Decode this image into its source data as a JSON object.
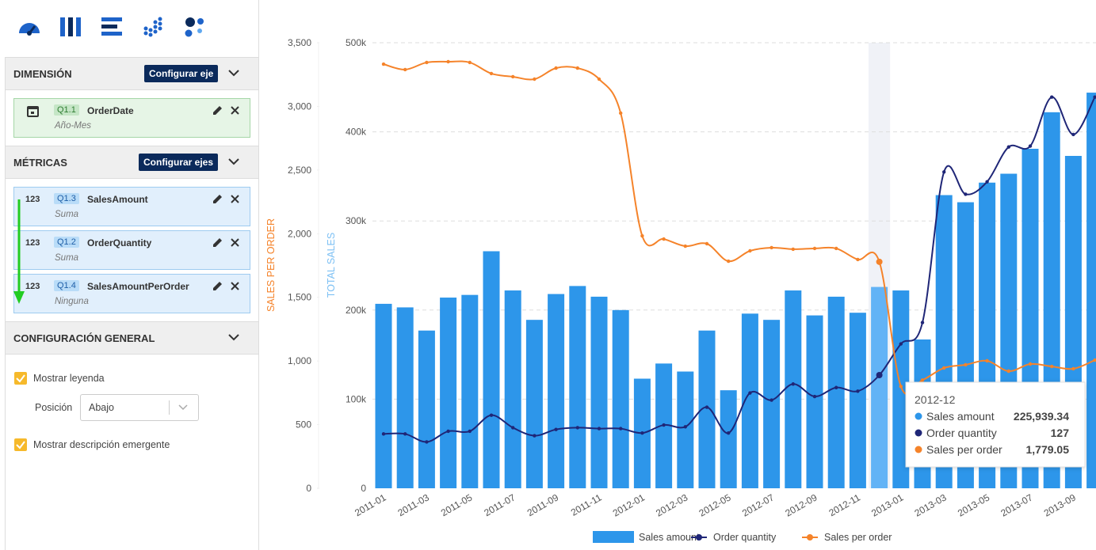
{
  "sidebar": {
    "dimension": {
      "title": "DIMENSIÓN",
      "button": "Configurar eje",
      "field": {
        "id": "Q1.1",
        "name": "OrderDate",
        "sub": "Año-Mes"
      }
    },
    "metrics": {
      "title": "MÉTRICAS",
      "button": "Configurar ejes",
      "fields": [
        {
          "type": "123",
          "id": "Q1.3",
          "name": "SalesAmount",
          "sub": "Suma"
        },
        {
          "type": "123",
          "id": "Q1.2",
          "name": "OrderQuantity",
          "sub": "Suma"
        },
        {
          "type": "123",
          "id": "Q1.4",
          "name": "SalesAmountPerOrder",
          "sub": "Ninguna"
        }
      ]
    },
    "general": {
      "title": "CONFIGURACIÓN GENERAL",
      "legend": "Mostrar leyenda",
      "position_label": "Posición",
      "position": "Abajo",
      "tooltip": "Mostrar descripción emergente"
    }
  },
  "chart_data": {
    "type": "bar",
    "categories": [
      "2011-01",
      null,
      "2011-03",
      null,
      "2011-05",
      null,
      "2011-07",
      null,
      "2011-09",
      null,
      "2011-11",
      null,
      "2012-01",
      null,
      "2012-03",
      null,
      "2012-05",
      null,
      "2012-07",
      null,
      "2012-09",
      null,
      "2012-11",
      null,
      "2013-01",
      null,
      "2013-03",
      null,
      "2013-05",
      null,
      "2013-07",
      null,
      "2013-09",
      null
    ],
    "series": [
      {
        "name": "Sales amount",
        "type": "bar",
        "color": "#2d96ea",
        "values": [
          207000,
          203000,
          177000,
          214000,
          217000,
          266000,
          222000,
          189000,
          218000,
          227000,
          215000,
          200000,
          123000,
          140000,
          131000,
          177000,
          110000,
          196000,
          189000,
          222000,
          194000,
          215000,
          197000,
          225939.34,
          222000,
          167000,
          329000,
          321000,
          343000,
          353000,
          381000,
          422000,
          373000,
          444000
        ]
      },
      {
        "name": "Order quantity",
        "type": "line",
        "axis": "y3",
        "color": "#1f2677",
        "values": [
          61,
          61,
          52,
          64,
          64,
          82,
          68,
          59,
          66,
          68,
          67,
          67,
          62,
          71,
          69,
          91,
          62,
          107,
          99,
          117,
          103,
          113,
          109,
          127,
          162,
          186,
          355,
          330,
          344,
          383,
          384,
          439,
          397,
          439
        ]
      },
      {
        "name": "Sales per order",
        "type": "line",
        "axis": "y2",
        "color": "#f5832a",
        "values": [
          3332,
          3289,
          3345,
          3351,
          3345,
          3258,
          3233,
          3214,
          3301,
          3301,
          3214,
          2947,
          1983,
          1958,
          1902,
          1921,
          1784,
          1865,
          1890,
          1878,
          1884,
          1884,
          1797,
          1779.05,
          800,
          850,
          945,
          970,
          1001,
          920,
          976,
          957,
          939,
          1007
        ]
      }
    ],
    "ylabel": "TOTAL SALES",
    "ylim": [
      0,
      500000
    ],
    "yticks": [
      0,
      {
        "value": 100000,
        "label": "100k"
      },
      {
        "value": 200000,
        "label": "200k"
      },
      {
        "value": 300000,
        "label": "300k"
      },
      {
        "value": 400000,
        "label": "400k"
      },
      {
        "value": 500000,
        "label": "500k"
      }
    ],
    "y2label": "SALES PER ORDER",
    "y2lim": [
      0,
      3500
    ],
    "y2ticks": [
      0,
      500,
      {
        "value": 1000,
        "label": "1,000"
      },
      {
        "value": 1500,
        "label": "1,500"
      },
      {
        "value": 2000,
        "label": "2,000"
      },
      {
        "value": 2500,
        "label": "2,500"
      },
      {
        "value": 3000,
        "label": "3,000"
      },
      {
        "value": 3500,
        "label": "3,500"
      }
    ],
    "y3lim": [
      0,
      500
    ],
    "grid": true,
    "legend": "bottom",
    "highlight_color": "#62b3f6",
    "tooltip": {
      "index": 23,
      "title": "2012-12",
      "rows": [
        {
          "label": "Sales amount",
          "value": "225,939.34"
        },
        {
          "label": "Order quantity",
          "value": "127"
        },
        {
          "label": "Sales per order",
          "value": "1,779.05"
        }
      ]
    }
  }
}
